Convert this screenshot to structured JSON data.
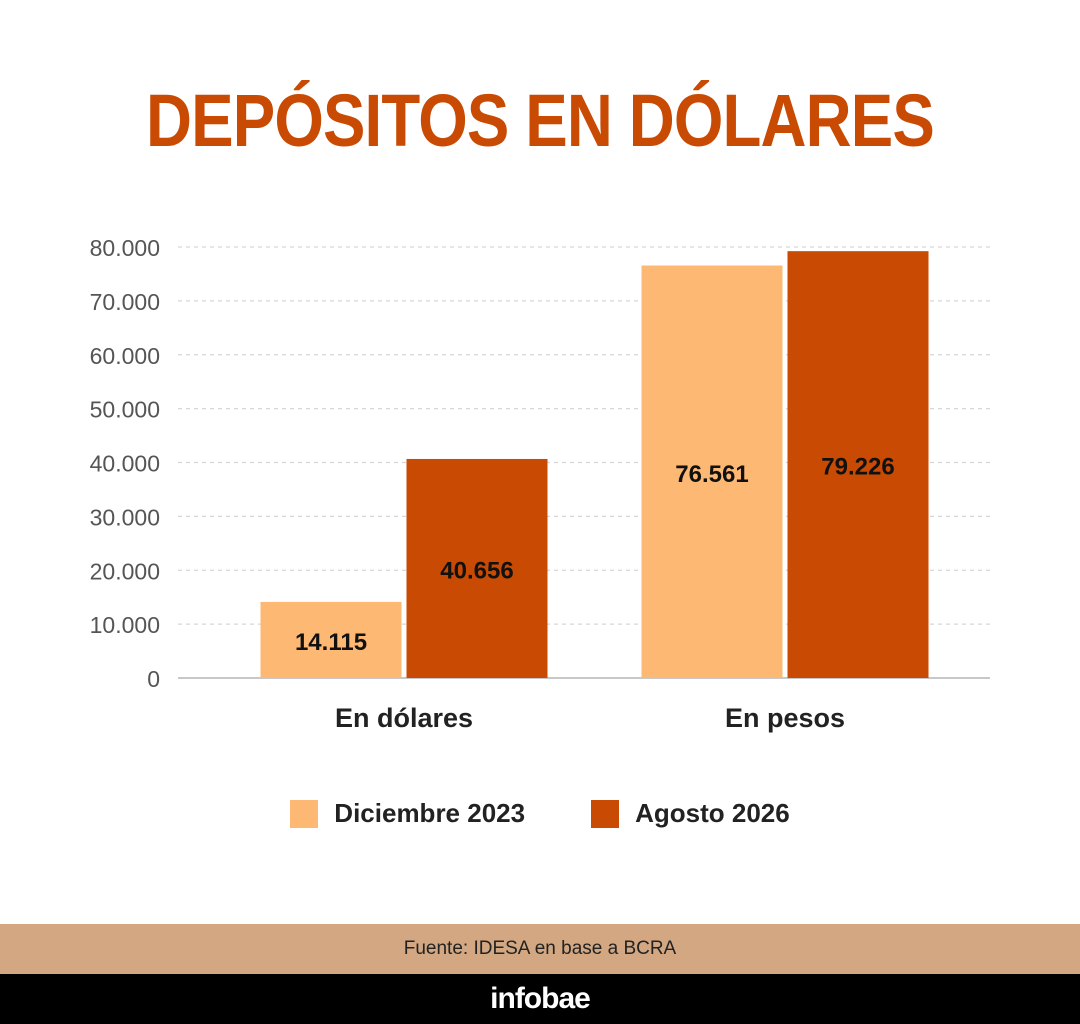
{
  "title": "DEPÓSITOS EN DÓLARES",
  "chart_data": {
    "type": "bar",
    "title": "DEPÓSITOS EN DÓLARES",
    "categories": [
      "En dólares",
      "En pesos"
    ],
    "series": [
      {
        "name": "Diciembre 2023",
        "values": [
          14115,
          76561
        ],
        "labels": [
          "14.115",
          "76.561"
        ],
        "color": "#fdb874"
      },
      {
        "name": "Agosto 2026",
        "values": [
          40656,
          79226
        ],
        "labels": [
          "40.656",
          "79.226"
        ],
        "color": "#c94a02"
      }
    ],
    "yticks": [
      0,
      10000,
      20000,
      30000,
      40000,
      50000,
      60000,
      70000,
      80000
    ],
    "ytick_labels": [
      "0",
      "10.000",
      "20.000",
      "30.000",
      "40.000",
      "50.000",
      "60.000",
      "70.000",
      "80.000"
    ],
    "ylim": [
      0,
      80000
    ],
    "grid": true,
    "legend_position": "bottom"
  },
  "legend": [
    {
      "label": "Diciembre 2023",
      "color": "#fdb874"
    },
    {
      "label": "Agosto 2026",
      "color": "#c94a02"
    }
  ],
  "source": "Fuente: IDESA en base a BCRA",
  "brand": "infobae"
}
